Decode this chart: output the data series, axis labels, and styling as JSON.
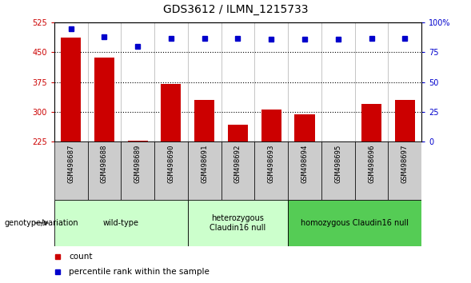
{
  "title": "GDS3612 / ILMN_1215733",
  "samples": [
    "GSM498687",
    "GSM498688",
    "GSM498689",
    "GSM498690",
    "GSM498691",
    "GSM498692",
    "GSM498693",
    "GSM498694",
    "GSM498695",
    "GSM498696",
    "GSM498697"
  ],
  "counts": [
    487,
    437,
    228,
    370,
    330,
    268,
    305,
    294,
    225,
    320,
    330
  ],
  "percentile_ranks": [
    95,
    88,
    80,
    87,
    87,
    87,
    86,
    86,
    86,
    87,
    87
  ],
  "ylim_left": [
    225,
    525
  ],
  "ylim_right": [
    0,
    100
  ],
  "yticks_left": [
    225,
    300,
    375,
    450,
    525
  ],
  "yticks_right": [
    0,
    25,
    50,
    75,
    100
  ],
  "yticklabels_right": [
    "0",
    "25",
    "50",
    "75",
    "100%"
  ],
  "bar_color": "#cc0000",
  "dot_color": "#0000cc",
  "bar_bottom": 225,
  "group_colors": [
    "#ccffcc",
    "#ccffcc",
    "#55cc55"
  ],
  "group_labels": [
    "wild-type",
    "heterozygous\nClaudin16 null",
    "homozygous Claudin16 null"
  ],
  "group_ranges": [
    [
      0,
      3
    ],
    [
      4,
      6
    ],
    [
      7,
      10
    ]
  ],
  "sample_box_color": "#cccccc",
  "legend_count_label": "count",
  "legend_pct_label": "percentile rank within the sample",
  "genotype_label": "genotype/variation",
  "title_fontsize": 10,
  "tick_fontsize": 7,
  "label_fontsize": 7.5,
  "gridline_yticks": [
    300,
    375,
    450
  ]
}
